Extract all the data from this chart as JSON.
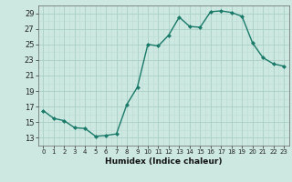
{
  "x": [
    0,
    1,
    2,
    3,
    4,
    5,
    6,
    7,
    8,
    9,
    10,
    11,
    12,
    13,
    14,
    15,
    16,
    17,
    18,
    19,
    20,
    21,
    22,
    23
  ],
  "y": [
    16.5,
    15.5,
    15.2,
    14.3,
    14.2,
    13.2,
    13.3,
    13.5,
    17.3,
    19.5,
    25.0,
    24.8,
    26.2,
    28.5,
    27.3,
    27.2,
    29.2,
    29.3,
    29.1,
    28.6,
    25.2,
    23.3,
    22.5,
    22.2
  ],
  "xlim": [
    -0.5,
    23.5
  ],
  "ylim": [
    12,
    30
  ],
  "yticks": [
    13,
    15,
    17,
    19,
    21,
    23,
    25,
    27,
    29
  ],
  "xticks": [
    0,
    1,
    2,
    3,
    4,
    5,
    6,
    7,
    8,
    9,
    10,
    11,
    12,
    13,
    14,
    15,
    16,
    17,
    18,
    19,
    20,
    21,
    22,
    23
  ],
  "xlabel": "Humidex (Indice chaleur)",
  "line_color": "#1a7a6a",
  "bg_color": "#cce8e0",
  "grid_color_major": "#aacfc8",
  "grid_color_minor": "#bbddd6",
  "marker": "D",
  "markersize": 2.0,
  "linewidth": 1.0
}
